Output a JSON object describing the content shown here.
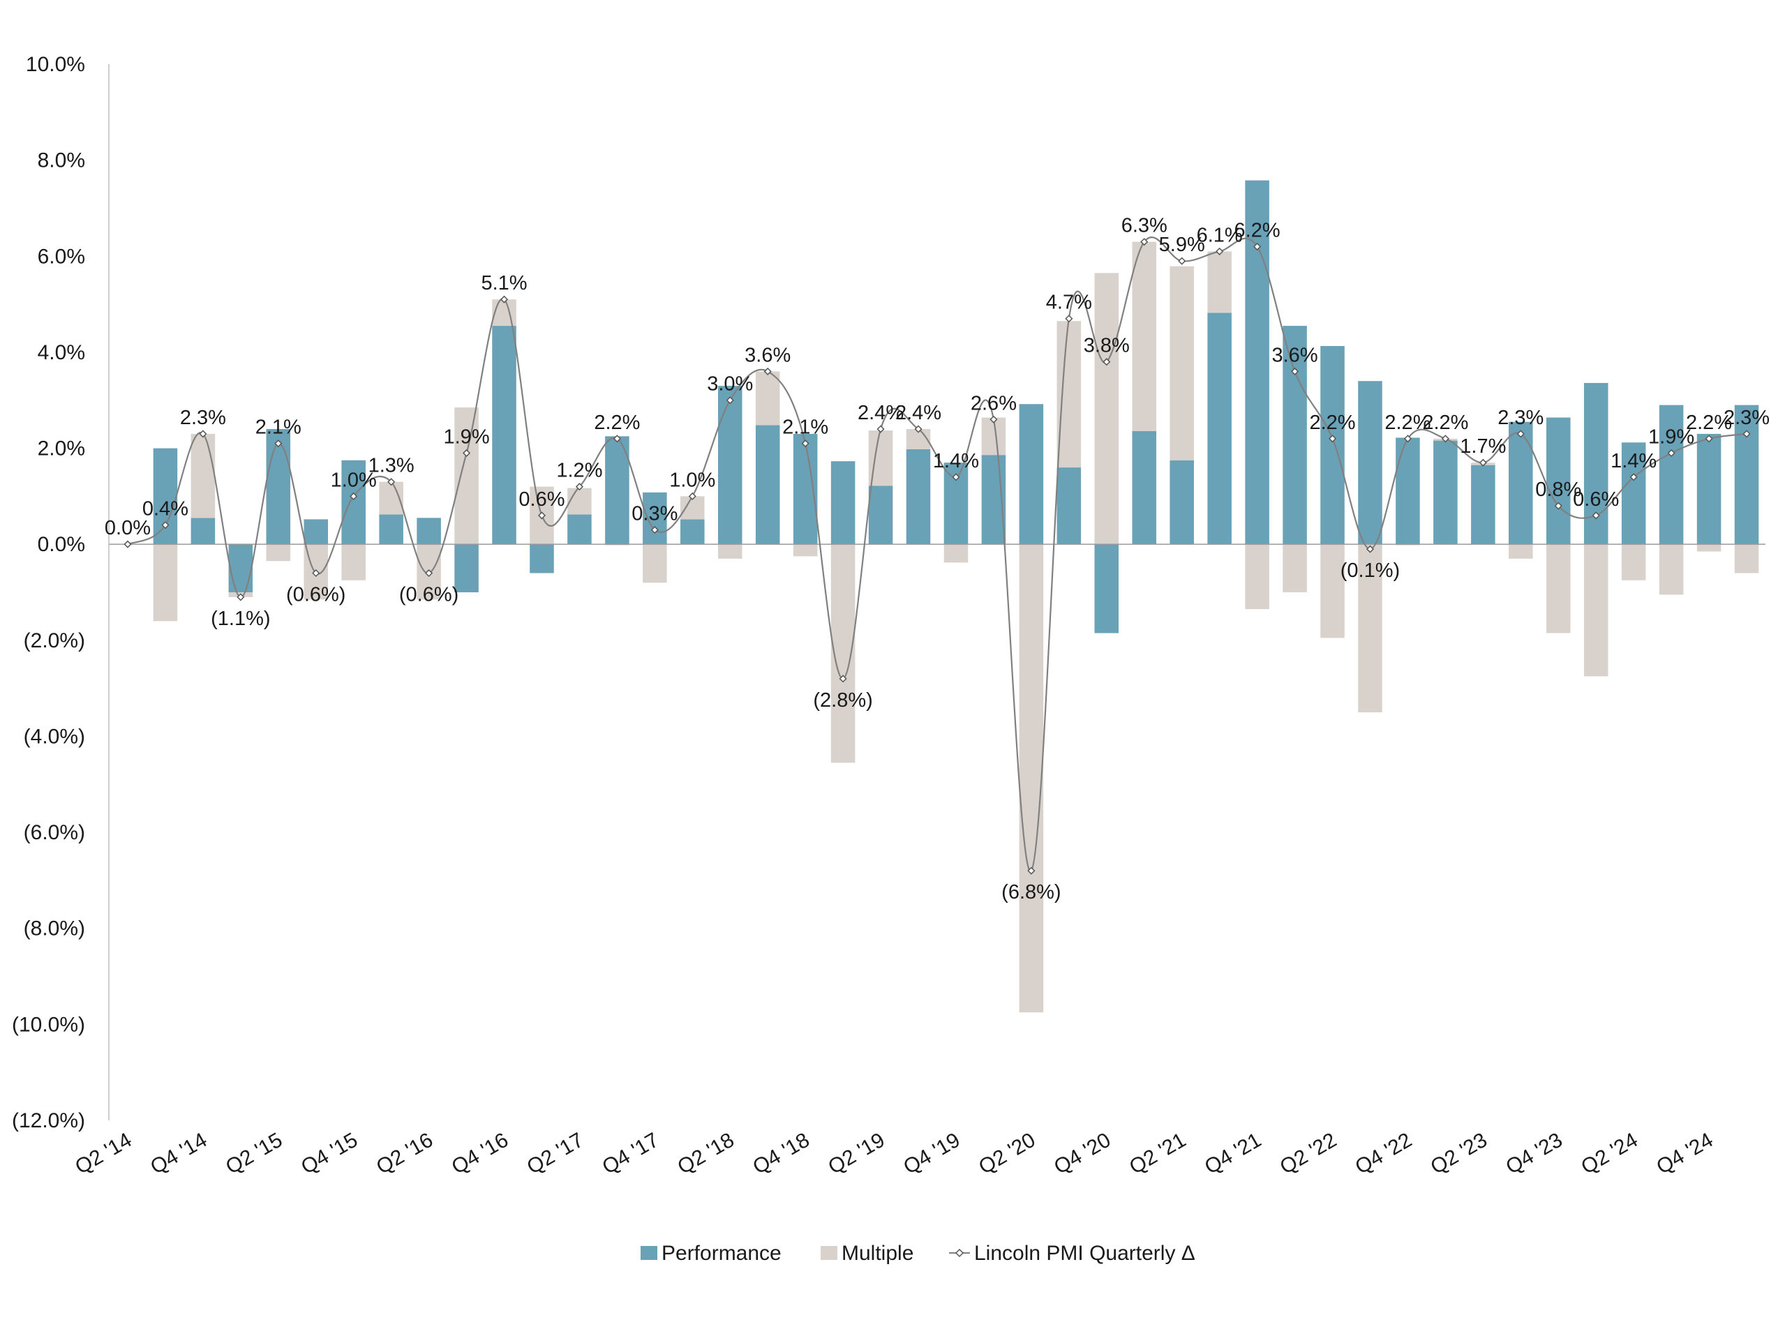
{
  "chart_data": {
    "type": "bar",
    "stacked": true,
    "title": "",
    "xlabel": "",
    "ylabel": "",
    "ylim": [
      -12,
      10
    ],
    "y_ticks": [
      10,
      8,
      6,
      4,
      2,
      0,
      -2,
      -4,
      -6,
      -8,
      -10,
      -12
    ],
    "y_tick_labels": [
      "10.0%",
      "8.0%",
      "6.0%",
      "4.0%",
      "2.0%",
      "0.0%",
      "(2.0%)",
      "(4.0%)",
      "(6.0%)",
      "(8.0%)",
      "(10.0%)",
      "(12.0%)"
    ],
    "categories": [
      "Q2 '14",
      "Q3 '14",
      "Q4 '14",
      "Q1 '15",
      "Q2 '15",
      "Q3 '15",
      "Q4 '15",
      "Q1 '16",
      "Q2 '16",
      "Q3 '16",
      "Q4 '16",
      "Q1 '17",
      "Q2 '17",
      "Q3 '17",
      "Q4 '17",
      "Q1 '18",
      "Q2 '18",
      "Q3 '18",
      "Q4 '18",
      "Q1 '19",
      "Q2 '19",
      "Q3 '19",
      "Q4 '19",
      "Q1 '20",
      "Q2 '20",
      "Q3 '20",
      "Q4 '20",
      "Q1 '21",
      "Q2 '21",
      "Q3 '21",
      "Q4 '21",
      "Q1 '22",
      "Q2 '22",
      "Q3 '22",
      "Q4 '22",
      "Q1 '23",
      "Q2 '23",
      "Q3 '23",
      "Q4 '23",
      "Q1 '24",
      "Q2 '24",
      "Q3 '24",
      "Q4 '24",
      "Q1 '25"
    ],
    "x_tick_labels": [
      "Q2 '14",
      "Q4 '14",
      "Q2 '15",
      "Q4 '15",
      "Q2 '16",
      "Q4 '16",
      "Q2 '17",
      "Q4 '17",
      "Q2 '18",
      "Q4 '18",
      "Q2 '19",
      "Q4 '19",
      "Q2 '20",
      "Q4 '20",
      "Q2 '21",
      "Q4 '21",
      "Q2 '22",
      "Q4 '22",
      "Q2 '23",
      "Q4 '23",
      "Q2 '24",
      "Q4 '24"
    ],
    "series": [
      {
        "name": "Performance",
        "kind": "bar",
        "color": "#69a1b7",
        "values": [
          0.0,
          2.0,
          0.55,
          -1.0,
          2.4,
          0.52,
          1.75,
          0.62,
          0.55,
          -1.0,
          4.55,
          -0.6,
          0.62,
          2.25,
          1.08,
          0.52,
          3.3,
          2.48,
          2.3,
          1.73,
          1.22,
          1.98,
          1.7,
          1.86,
          2.92,
          1.6,
          -1.85,
          2.36,
          1.75,
          4.82,
          7.58,
          4.55,
          4.13,
          3.4,
          2.22,
          2.16,
          1.65,
          2.55,
          2.64,
          3.36,
          2.12,
          2.9,
          2.3,
          2.9
        ]
      },
      {
        "name": "Multiple",
        "kind": "bar",
        "color": "#d9d2cc",
        "values": [
          0.0,
          -1.6,
          1.75,
          -0.1,
          -0.35,
          -1.15,
          -0.75,
          0.68,
          -1.15,
          2.85,
          0.55,
          1.2,
          0.55,
          -0.02,
          -0.8,
          0.48,
          -0.3,
          1.12,
          -0.25,
          -4.55,
          1.15,
          0.42,
          -0.38,
          0.78,
          -9.75,
          3.05,
          5.65,
          3.94,
          4.04,
          1.28,
          -1.35,
          -1.0,
          -1.95,
          -3.5,
          -0.02,
          0.04,
          0.05,
          -0.3,
          -1.85,
          -2.75,
          -0.75,
          -1.05,
          -0.15,
          -0.6
        ]
      },
      {
        "name": "Lincoln PMI Quarterly Δ",
        "kind": "line",
        "color": "#808080",
        "values": [
          0.0,
          0.4,
          2.3,
          -1.1,
          2.1,
          -0.6,
          1.0,
          1.3,
          -0.6,
          1.9,
          5.1,
          0.6,
          1.2,
          2.2,
          0.3,
          1.0,
          3.0,
          3.6,
          2.1,
          -2.8,
          2.4,
          2.4,
          1.4,
          2.6,
          -6.8,
          4.7,
          3.8,
          6.3,
          5.9,
          6.1,
          6.2,
          3.6,
          2.2,
          -0.1,
          2.2,
          2.2,
          1.7,
          2.3,
          0.8,
          0.6,
          1.4,
          1.9,
          2.2,
          2.3
        ],
        "labels": [
          "0.0%",
          "0.4%",
          "2.3%",
          "(1.1%)",
          "2.1%",
          "(0.6%)",
          "1.0%",
          "1.3%",
          "(0.6%)",
          "1.9%",
          "5.1%",
          "0.6%",
          "1.2%",
          "2.2%",
          "0.3%",
          "1.0%",
          "3.0%",
          "3.6%",
          "2.1%",
          "(2.8%)",
          "2.4%",
          "2.4%",
          "1.4%",
          "2.6%",
          "(6.8%)",
          "4.7%",
          "3.8%",
          "6.3%",
          "5.9%",
          "6.1%",
          "6.2%",
          "3.6%",
          "2.2%",
          "(0.1%)",
          "2.2%",
          "2.2%",
          "1.7%",
          "2.3%",
          "0.8%",
          "0.6%",
          "1.4%",
          "1.9%",
          "2.2%",
          "2.3%"
        ]
      }
    ],
    "legend": {
      "position": "bottom-center",
      "items": [
        {
          "label": "Performance",
          "icon": "square-swatch",
          "color": "#69a1b7"
        },
        {
          "label": "Multiple",
          "icon": "square-swatch",
          "color": "#d9d2cc"
        },
        {
          "label": "Lincoln PMI Quarterly Δ",
          "icon": "line-with-diamond-marker",
          "color": "#808080"
        }
      ]
    },
    "grid": false
  }
}
